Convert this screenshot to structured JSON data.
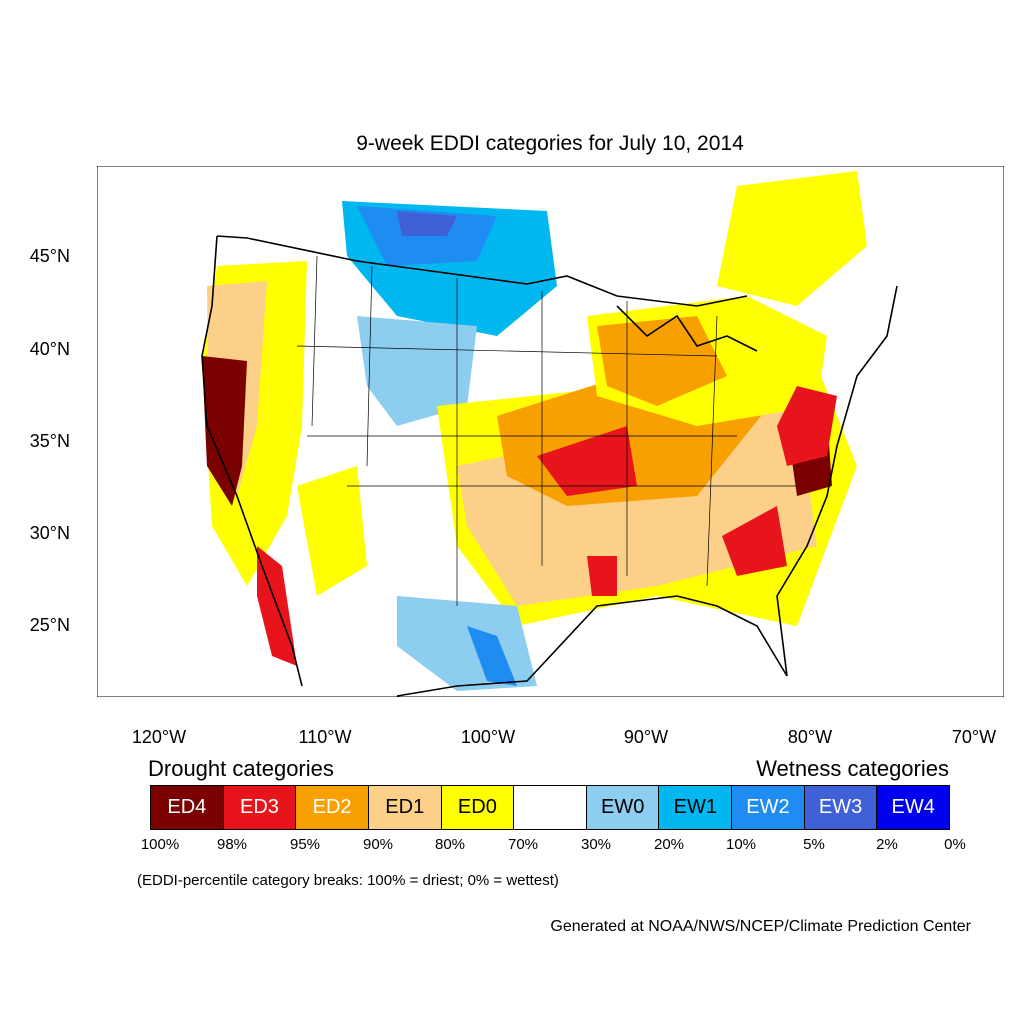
{
  "title": "9-week EDDI categories for July 10, 2014",
  "axes": {
    "lat_labels": [
      "45°N",
      "40°N",
      "35°N",
      "30°N",
      "25°N"
    ],
    "lon_labels": [
      "120°W",
      "110°W",
      "100°W",
      "90°W",
      "80°W",
      "70°W"
    ]
  },
  "legend": {
    "drought_heading": "Drought categories",
    "wetness_heading": "Wetness categories",
    "categories": [
      {
        "label": "ED4",
        "color": "#7b0000",
        "text_color": "#ffffff"
      },
      {
        "label": "ED3",
        "color": "#e8141c",
        "text_color": "#ffffff"
      },
      {
        "label": "ED2",
        "color": "#f7a000",
        "text_color": "#ffffff"
      },
      {
        "label": "ED1",
        "color": "#fcd088",
        "text_color": "#000000"
      },
      {
        "label": "ED0",
        "color": "#ffff00",
        "text_color": "#000000"
      },
      {
        "label": "",
        "color": "#ffffff",
        "text_color": "#000000"
      },
      {
        "label": "EW0",
        "color": "#8ccdf0",
        "text_color": "#000000"
      },
      {
        "label": "EW1",
        "color": "#00b7f0",
        "text_color": "#000000"
      },
      {
        "label": "EW2",
        "color": "#1e8cf0",
        "text_color": "#ffffff"
      },
      {
        "label": "EW3",
        "color": "#4060d8",
        "text_color": "#ffffff"
      },
      {
        "label": "EW4",
        "color": "#0000f0",
        "text_color": "#ffffff"
      }
    ],
    "percentile_breaks": [
      "100%",
      "98%",
      "95%",
      "90%",
      "80%",
      "70%",
      "30%",
      "20%",
      "10%",
      "5%",
      "2%",
      "0%"
    ]
  },
  "footnote": "(EDDI-percentile category breaks: 100% = driest; 0% = wettest)",
  "credit": "Generated at NOAA/NWS/NCEP/Climate Prediction Center"
}
